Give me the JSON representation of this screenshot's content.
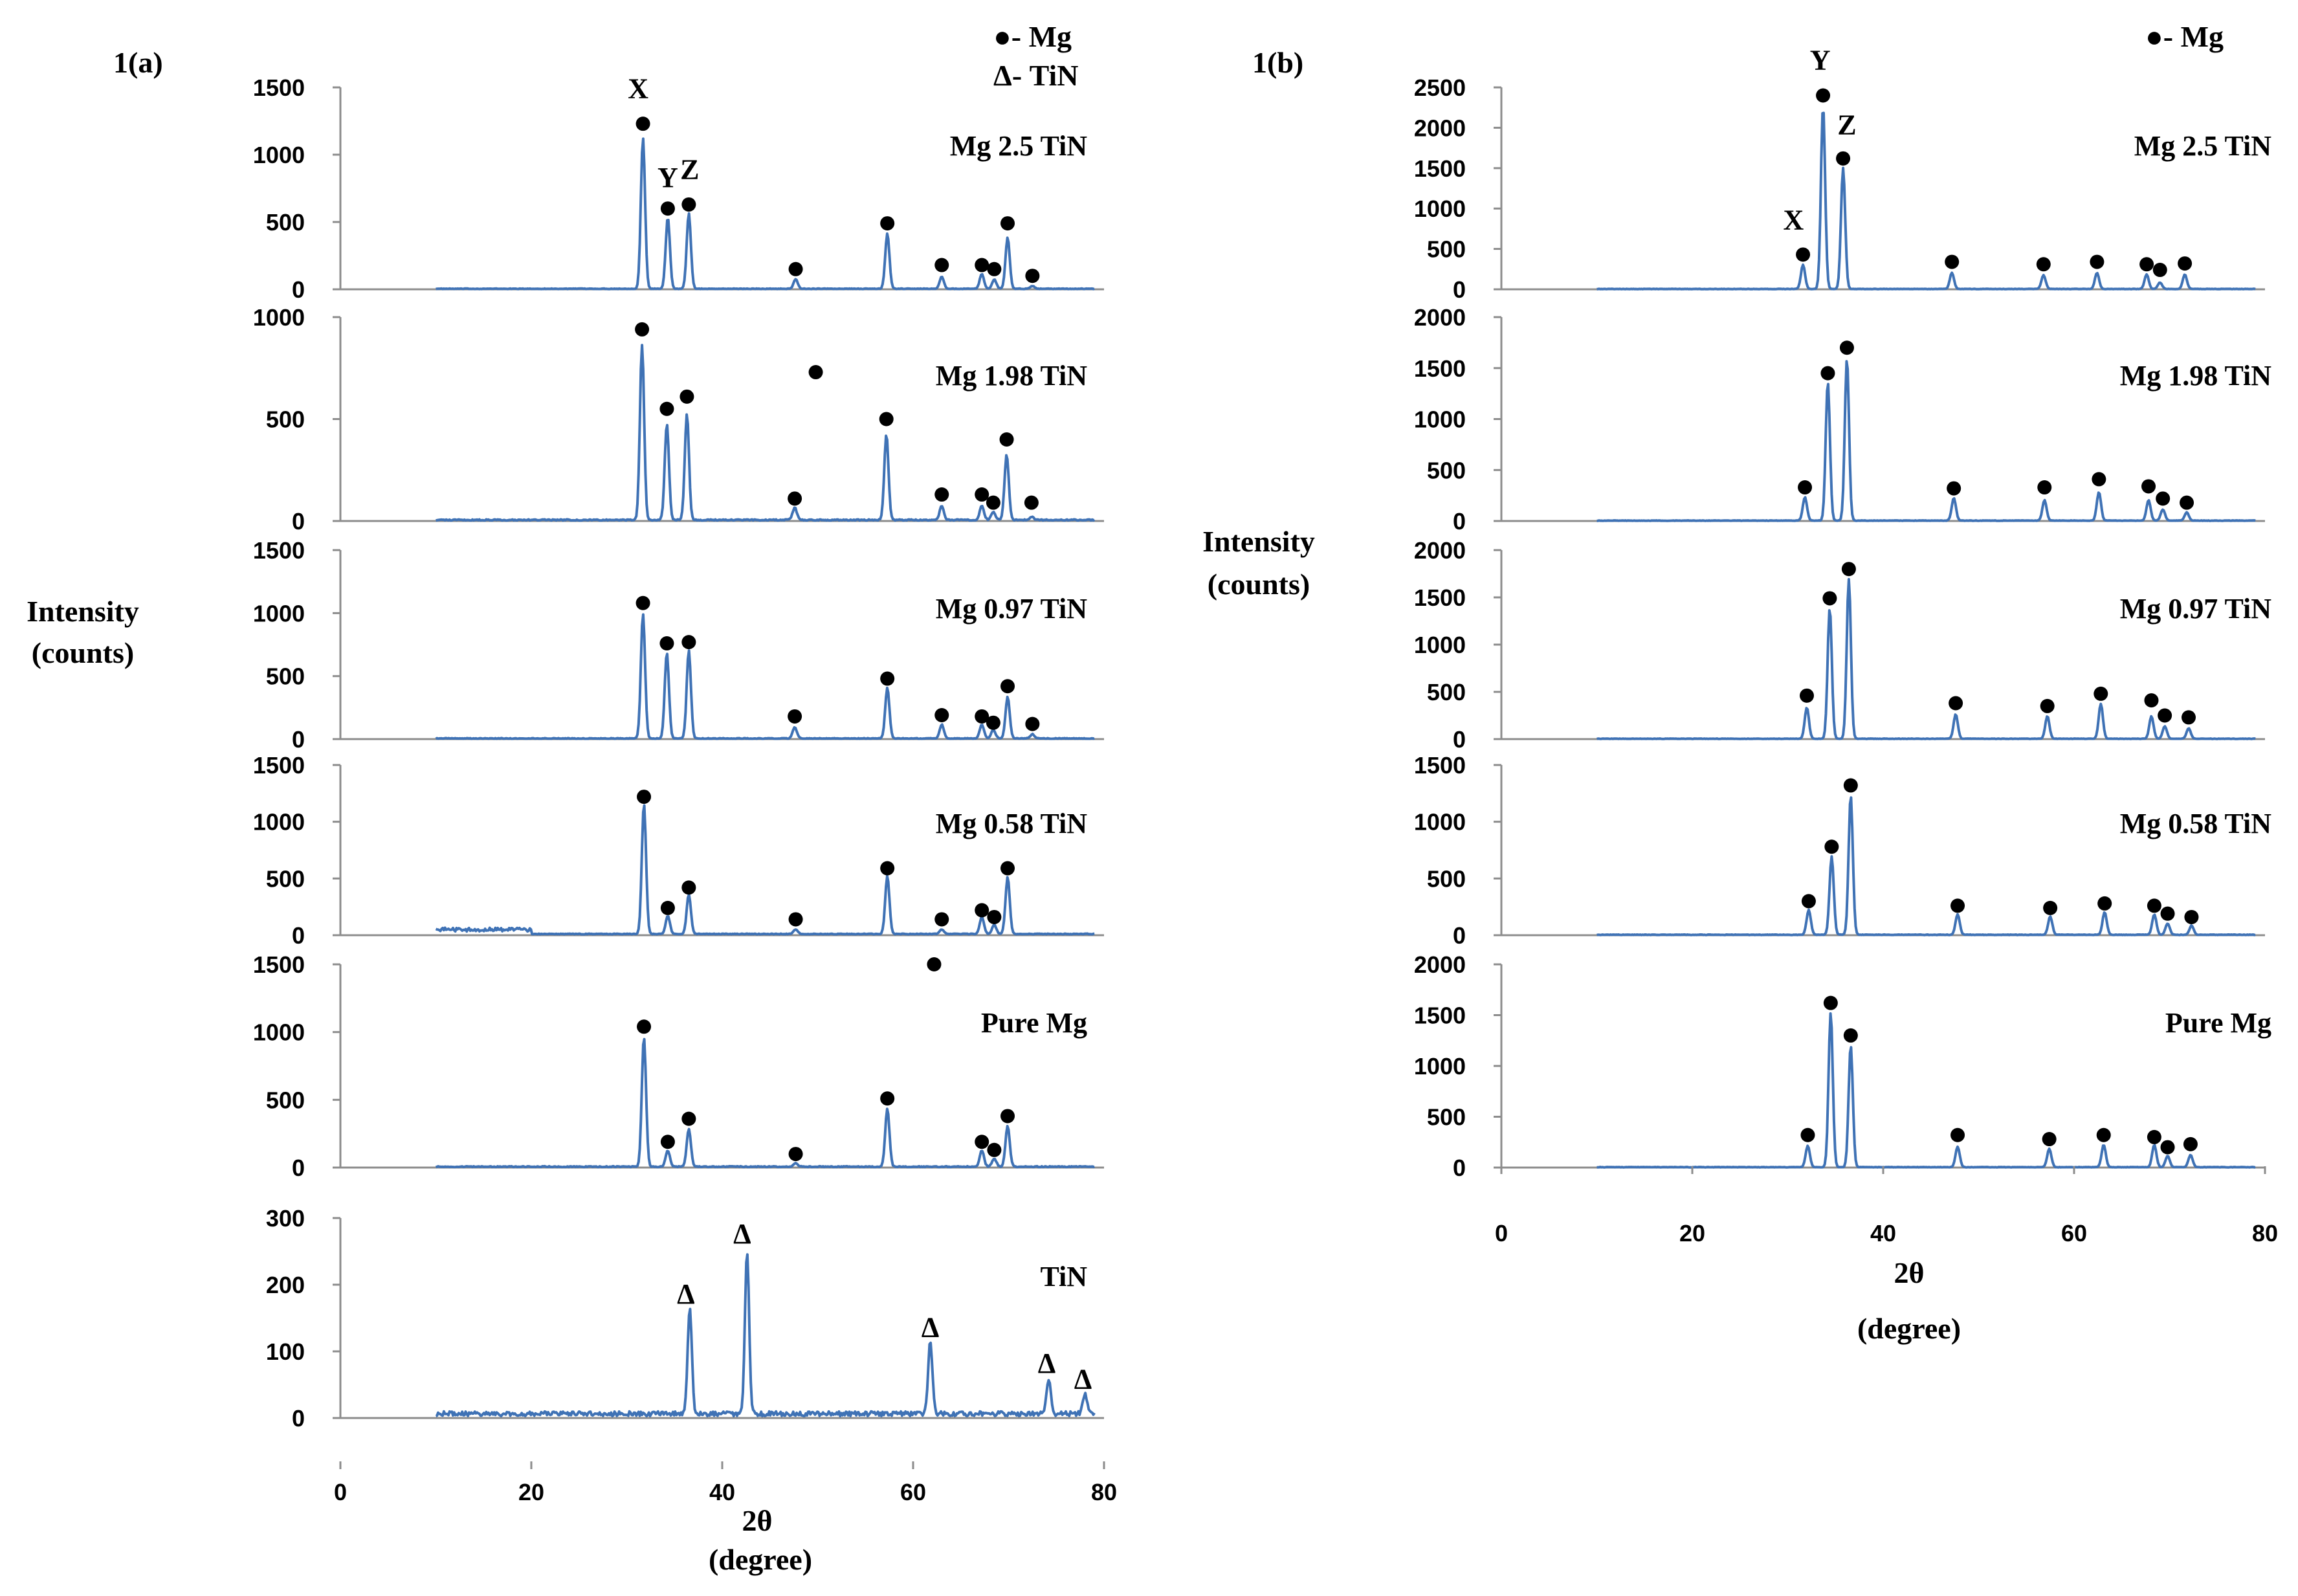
{
  "chart_data": [
    {
      "id": "1a",
      "type": "line",
      "panel_label": "1(a)",
      "legend": [
        "●- Mg",
        "Δ- TiN"
      ],
      "ylabel": [
        "Intensity",
        "(counts)"
      ],
      "xlabel": [
        "2θ",
        "(degree)"
      ],
      "xlim": [
        0,
        80
      ],
      "xticks": [
        "0",
        "20",
        "40",
        "60",
        "80"
      ],
      "series": [
        {
          "name": "Mg 2.5 TiN",
          "ylim": [
            0,
            1500
          ],
          "yticks": [
            "0",
            "500",
            "1000",
            "1500"
          ],
          "start": 10,
          "noise": 6,
          "peaks": [
            [
              31.7,
              1120
            ],
            [
              34.3,
              530
            ],
            [
              36.5,
              560
            ],
            [
              47.7,
              70
            ],
            [
              57.3,
              410
            ],
            [
              63,
              90
            ],
            [
              67.2,
              110
            ],
            [
              68.5,
              70
            ],
            [
              69.9,
              380
            ],
            [
              72.5,
              20
            ]
          ],
          "markers": [
            [
              31.7,
              1230
            ],
            [
              34.3,
              600
            ],
            [
              36.5,
              630
            ],
            [
              47.7,
              150
            ],
            [
              57.3,
              490
            ],
            [
              63,
              180
            ],
            [
              67.2,
              180
            ],
            [
              68.5,
              150
            ],
            [
              69.9,
              490
            ],
            [
              72.5,
              100
            ]
          ],
          "annotations": [
            {
              "text": "X",
              "x": 31.2,
              "y": 1420
            },
            {
              "text": "Y",
              "x": 34.3,
              "y": 760
            },
            {
              "text": "Z",
              "x": 36.6,
              "y": 820
            }
          ]
        },
        {
          "name": "Mg 1.98 TiN",
          "ylim": [
            0,
            1000
          ],
          "yticks": [
            "0",
            "500",
            "1000"
          ],
          "start": 10,
          "noise": 8,
          "peaks": [
            [
              31.6,
              860
            ],
            [
              34.2,
              470
            ],
            [
              36.3,
              520
            ],
            [
              47.6,
              60
            ],
            [
              57.2,
              420
            ],
            [
              63,
              70
            ],
            [
              67.2,
              70
            ],
            [
              68.4,
              40
            ],
            [
              69.8,
              320
            ],
            [
              72.4,
              15
            ]
          ],
          "markers": [
            [
              31.6,
              940
            ],
            [
              34.2,
              550
            ],
            [
              36.3,
              610
            ],
            [
              47.6,
              110
            ],
            [
              57.2,
              500
            ],
            [
              63,
              130
            ],
            [
              67.2,
              130
            ],
            [
              68.4,
              90
            ],
            [
              69.8,
              400
            ],
            [
              72.4,
              90
            ],
            [
              49.8,
              730
            ]
          ],
          "annotations": []
        },
        {
          "name": "Mg 0.97 TiN",
          "ylim": [
            0,
            1500
          ],
          "yticks": [
            "0",
            "500",
            "1000",
            "1500"
          ],
          "start": 10,
          "noise": 8,
          "peaks": [
            [
              31.7,
              990
            ],
            [
              34.2,
              680
            ],
            [
              36.5,
              700
            ],
            [
              47.6,
              90
            ],
            [
              57.3,
              400
            ],
            [
              63,
              110
            ],
            [
              67.2,
              110
            ],
            [
              68.4,
              70
            ],
            [
              69.9,
              330
            ],
            [
              72.5,
              35
            ]
          ],
          "markers": [
            [
              31.7,
              1080
            ],
            [
              34.2,
              760
            ],
            [
              36.5,
              770
            ],
            [
              47.6,
              180
            ],
            [
              57.3,
              480
            ],
            [
              63,
              190
            ],
            [
              67.2,
              180
            ],
            [
              68.4,
              130
            ],
            [
              69.9,
              420
            ],
            [
              72.5,
              120
            ]
          ],
          "annotations": []
        },
        {
          "name": "Mg 0.58 TiN",
          "ylim": [
            0,
            1500
          ],
          "yticks": [
            "0",
            "500",
            "1000",
            "1500"
          ],
          "start": 10,
          "noise": 55,
          "peaks": [
            [
              31.8,
              1150
            ],
            [
              34.3,
              160
            ],
            [
              36.5,
              350
            ],
            [
              47.7,
              40
            ],
            [
              57.3,
              510
            ],
            [
              63,
              40
            ],
            [
              67.2,
              150
            ],
            [
              68.5,
              80
            ],
            [
              69.9,
              500
            ]
          ],
          "markers": [
            [
              31.8,
              1220
            ],
            [
              34.3,
              240
            ],
            [
              36.5,
              420
            ],
            [
              47.7,
              140
            ],
            [
              57.3,
              590
            ],
            [
              63,
              140
            ],
            [
              67.2,
              220
            ],
            [
              68.5,
              160
            ],
            [
              69.9,
              590
            ]
          ],
          "annotations": []
        },
        {
          "name": "Pure  Mg",
          "ylim": [
            0,
            1500
          ],
          "yticks": [
            "0",
            "500",
            "1000",
            "1500"
          ],
          "start": 10,
          "noise": 10,
          "peaks": [
            [
              31.8,
              960
            ],
            [
              34.3,
              120
            ],
            [
              36.5,
              280
            ],
            [
              47.7,
              25
            ],
            [
              57.3,
              430
            ],
            [
              67.2,
              120
            ],
            [
              68.5,
              60
            ],
            [
              69.9,
              300
            ]
          ],
          "markers": [
            [
              31.8,
              1040
            ],
            [
              34.3,
              190
            ],
            [
              36.5,
              360
            ],
            [
              47.7,
              100
            ],
            [
              57.3,
              510
            ],
            [
              67.2,
              190
            ],
            [
              68.5,
              130
            ],
            [
              69.9,
              380
            ],
            [
              62.2,
              1500
            ]
          ],
          "annotations": []
        },
        {
          "name": "TiN",
          "ylim": [
            0,
            300
          ],
          "yticks": [
            "0",
            "100",
            "200",
            "300"
          ],
          "start": 10,
          "noise": 10,
          "peaks": [
            [
              36.6,
              160
            ],
            [
              42.6,
              245
            ],
            [
              61.8,
              110
            ],
            [
              74.2,
              50
            ],
            [
              78,
              30
            ]
          ],
          "markers": [],
          "annotations": [
            {
              "text": "Δ",
              "x": 36.2,
              "y": 172
            },
            {
              "text": "Δ",
              "x": 42.1,
              "y": 262
            },
            {
              "text": "Δ",
              "x": 61.8,
              "y": 122
            },
            {
              "text": "Δ",
              "x": 74,
              "y": 68
            },
            {
              "text": "Δ",
              "x": 77.8,
              "y": 44
            }
          ]
        }
      ]
    },
    {
      "id": "1b",
      "type": "line",
      "panel_label": "1(b)",
      "legend": [
        "●- Mg"
      ],
      "ylabel": [
        "Intensity",
        "(counts)"
      ],
      "xlabel": [
        "2θ",
        "(degree)"
      ],
      "xlim": [
        0,
        80
      ],
      "xticks": [
        "0",
        "20",
        "40",
        "60",
        "80"
      ],
      "series": [
        {
          "name": "Mg 2.5 TiN",
          "ylim": [
            0,
            2500
          ],
          "yticks": [
            "0",
            "500",
            "1000",
            "1500",
            "2000",
            "2500"
          ],
          "start": 10,
          "noise": 6,
          "peaks": [
            [
              31.6,
              300
            ],
            [
              33.7,
              2260
            ],
            [
              35.8,
              1500
            ],
            [
              47.2,
              200
            ],
            [
              56.8,
              170
            ],
            [
              62.4,
              200
            ],
            [
              67.6,
              180
            ],
            [
              69,
              80
            ],
            [
              71.6,
              180
            ]
          ],
          "markers": [
            [
              31.6,
              430
            ],
            [
              33.7,
              2400
            ],
            [
              35.8,
              1620
            ],
            [
              47.2,
              340
            ],
            [
              56.8,
              310
            ],
            [
              62.4,
              340
            ],
            [
              67.6,
              310
            ],
            [
              69,
              240
            ],
            [
              71.6,
              320
            ]
          ],
          "annotations": [
            {
              "text": "X",
              "x": 30.6,
              "y": 740
            },
            {
              "text": "Y",
              "x": 33.4,
              "y": 2720
            },
            {
              "text": "Z",
              "x": 36.2,
              "y": 1920
            }
          ]
        },
        {
          "name": "Mg 1.98 TiN",
          "ylim": [
            0,
            2000
          ],
          "yticks": [
            "0",
            "500",
            "1000",
            "1500",
            "2000"
          ],
          "start": 10,
          "noise": 6,
          "peaks": [
            [
              31.8,
              230
            ],
            [
              34.2,
              1360
            ],
            [
              36.2,
              1590
            ],
            [
              47.4,
              220
            ],
            [
              56.9,
              200
            ],
            [
              62.6,
              280
            ],
            [
              67.8,
              200
            ],
            [
              69.3,
              110
            ],
            [
              71.8,
              80
            ]
          ],
          "markers": [
            [
              31.8,
              330
            ],
            [
              34.2,
              1450
            ],
            [
              36.2,
              1700
            ],
            [
              47.4,
              320
            ],
            [
              56.9,
              330
            ],
            [
              62.6,
              410
            ],
            [
              67.8,
              340
            ],
            [
              69.3,
              220
            ],
            [
              71.8,
              180
            ]
          ],
          "annotations": []
        },
        {
          "name": "Mg 0.97 TiN",
          "ylim": [
            0,
            2000
          ],
          "yticks": [
            "0",
            "500",
            "1000",
            "1500",
            "2000"
          ],
          "start": 10,
          "noise": 6,
          "peaks": [
            [
              32,
              330
            ],
            [
              34.4,
              1380
            ],
            [
              36.4,
              1690
            ],
            [
              47.6,
              260
            ],
            [
              57.2,
              240
            ],
            [
              62.8,
              370
            ],
            [
              68.1,
              240
            ],
            [
              69.5,
              130
            ],
            [
              72,
              110
            ]
          ],
          "markers": [
            [
              32,
              460
            ],
            [
              34.4,
              1490
            ],
            [
              36.4,
              1800
            ],
            [
              47.6,
              380
            ],
            [
              57.2,
              350
            ],
            [
              62.8,
              480
            ],
            [
              68.1,
              410
            ],
            [
              69.5,
              250
            ],
            [
              72,
              230
            ]
          ],
          "annotations": []
        },
        {
          "name": "Mg 0.58 TiN",
          "ylim": [
            0,
            1500
          ],
          "yticks": [
            "0",
            "500",
            "1000",
            "1500"
          ],
          "start": 10,
          "noise": 6,
          "peaks": [
            [
              32.2,
              220
            ],
            [
              34.6,
              690
            ],
            [
              36.6,
              1230
            ],
            [
              47.8,
              180
            ],
            [
              57.5,
              160
            ],
            [
              63.2,
              200
            ],
            [
              68.4,
              180
            ],
            [
              69.8,
              100
            ],
            [
              72.3,
              80
            ]
          ],
          "markers": [
            [
              32.2,
              300
            ],
            [
              34.6,
              780
            ],
            [
              36.6,
              1320
            ],
            [
              47.8,
              260
            ],
            [
              57.5,
              240
            ],
            [
              63.2,
              280
            ],
            [
              68.4,
              260
            ],
            [
              69.8,
              190
            ],
            [
              72.3,
              160
            ]
          ],
          "annotations": []
        },
        {
          "name": "Pure  Mg",
          "ylim": [
            0,
            2000
          ],
          "yticks": [
            "0",
            "500",
            "1000",
            "1500",
            "2000"
          ],
          "start": 10,
          "noise": 6,
          "peaks": [
            [
              32.1,
              210
            ],
            [
              34.5,
              1520
            ],
            [
              36.6,
              1200
            ],
            [
              47.8,
              200
            ],
            [
              57.4,
              180
            ],
            [
              63.1,
              220
            ],
            [
              68.4,
              220
            ],
            [
              69.8,
              110
            ],
            [
              72.2,
              120
            ]
          ],
          "markers": [
            [
              32.1,
              320
            ],
            [
              34.5,
              1620
            ],
            [
              36.6,
              1300
            ],
            [
              47.8,
              320
            ],
            [
              57.4,
              280
            ],
            [
              63.1,
              320
            ],
            [
              68.4,
              300
            ],
            [
              69.8,
              200
            ],
            [
              72.2,
              230
            ]
          ],
          "annotations": []
        }
      ]
    }
  ]
}
